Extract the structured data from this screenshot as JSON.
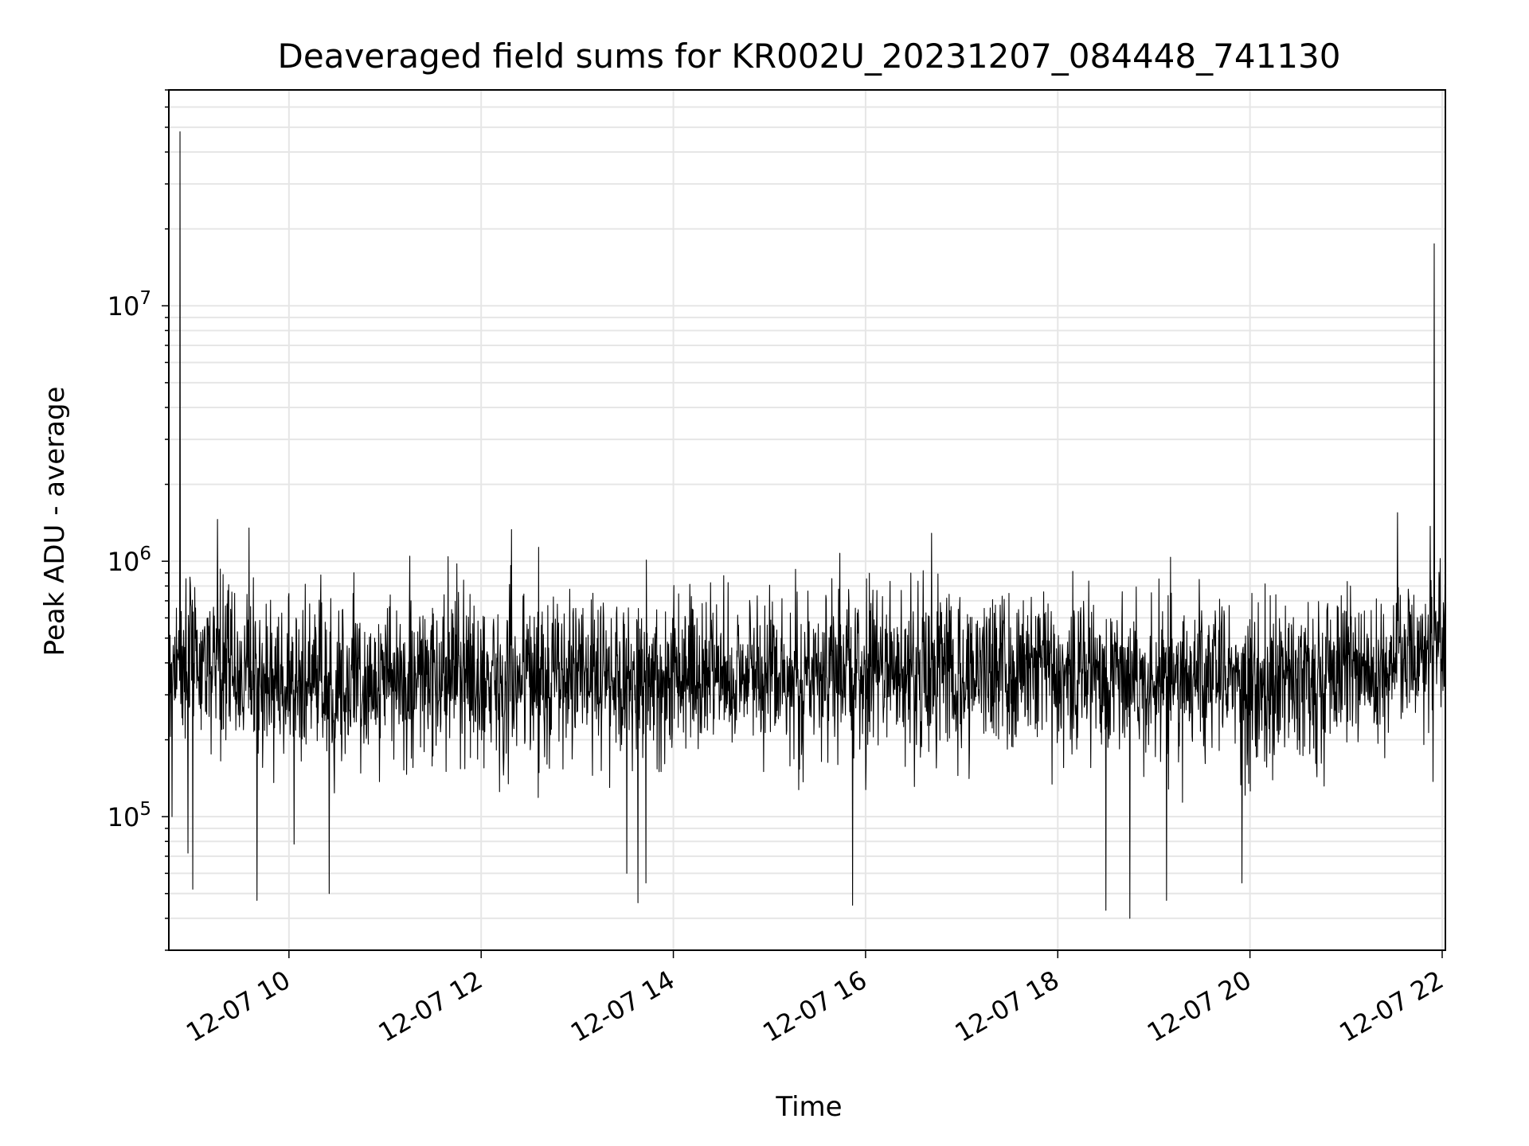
{
  "chart_data": {
    "type": "line",
    "title": "Deaveraged field sums for KR002U_20231207_084448_741130",
    "xlabel": "Time",
    "ylabel": "Peak ADU - average",
    "x_axis": {
      "kind": "datetime",
      "range": [
        "2023-12-07T08:45:00",
        "2023-12-07T22:02:00"
      ],
      "ticks": [
        "12-07 10",
        "12-07 12",
        "12-07 14",
        "12-07 16",
        "12-07 18",
        "12-07 20",
        "12-07 22"
      ],
      "tick_times": [
        "2023-12-07T10:00:00",
        "2023-12-07T12:00:00",
        "2023-12-07T14:00:00",
        "2023-12-07T16:00:00",
        "2023-12-07T18:00:00",
        "2023-12-07T20:00:00",
        "2023-12-07T22:00:00"
      ],
      "tick_rotation_deg": 30
    },
    "y_axis": {
      "scale": "log",
      "range": [
        30000,
        70000000
      ],
      "major_ticks": [
        100000,
        1000000,
        10000000
      ],
      "major_tick_labels": [
        "10",
        "10",
        "10"
      ],
      "major_tick_exponents": [
        "5",
        "6",
        "7"
      ]
    },
    "grid": true,
    "line_color": "#000000",
    "grid_color": "#e6e6e6",
    "series": [
      {
        "baseline_points": [
          {
            "t": "2023-12-07T08:45:00",
            "y": 400000
          },
          {
            "t": "2023-12-07T09:00:00",
            "y": 420000
          },
          {
            "t": "2023-12-07T10:00:00",
            "y": 330000
          },
          {
            "t": "2023-12-07T12:00:00",
            "y": 350000
          },
          {
            "t": "2023-12-07T14:00:00",
            "y": 360000
          },
          {
            "t": "2023-12-07T16:00:00",
            "y": 370000
          },
          {
            "t": "2023-12-07T18:00:00",
            "y": 380000
          },
          {
            "t": "2023-12-07T20:00:00",
            "y": 330000
          },
          {
            "t": "2023-12-07T21:30:00",
            "y": 400000
          },
          {
            "t": "2023-12-07T22:02:00",
            "y": 560000
          }
        ],
        "spikes": [
          {
            "t": "2023-12-07T08:52:00",
            "y": 48000000
          },
          {
            "t": "2023-12-07T08:47:00",
            "y": 100000
          },
          {
            "t": "2023-12-07T08:57:00",
            "y": 72000
          },
          {
            "t": "2023-12-07T09:00:00",
            "y": 52000
          },
          {
            "t": "2023-12-07T09:35:00",
            "y": 1350000
          },
          {
            "t": "2023-12-07T09:40:00",
            "y": 47000
          },
          {
            "t": "2023-12-07T10:25:00",
            "y": 50000
          },
          {
            "t": "2023-12-07T12:19:00",
            "y": 1330000
          },
          {
            "t": "2023-12-07T13:31:00",
            "y": 60000
          },
          {
            "t": "2023-12-07T13:38:00",
            "y": 46000
          },
          {
            "t": "2023-12-07T13:43:00",
            "y": 55000
          },
          {
            "t": "2023-12-07T15:52:00",
            "y": 45000
          },
          {
            "t": "2023-12-07T18:30:00",
            "y": 43000
          },
          {
            "t": "2023-12-07T18:45:00",
            "y": 40000
          },
          {
            "t": "2023-12-07T19:08:00",
            "y": 47000
          },
          {
            "t": "2023-12-07T19:55:00",
            "y": 55000
          },
          {
            "t": "2023-12-07T21:32:00",
            "y": 1550000
          },
          {
            "t": "2023-12-07T21:55:00",
            "y": 17500000
          }
        ]
      }
    ]
  }
}
